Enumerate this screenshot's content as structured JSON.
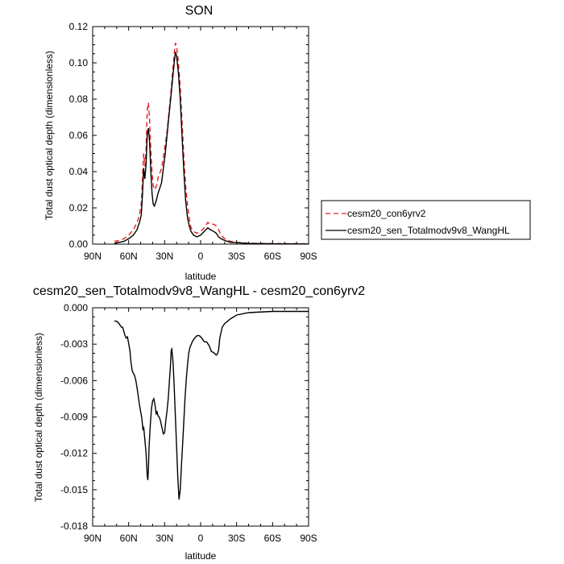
{
  "chart_data": [
    {
      "type": "line",
      "title": "SON",
      "xlabel": "latitude",
      "ylabel": "Total dust optical depth (dimensionless)",
      "xlim": [
        90,
        -90
      ],
      "ylim": [
        0,
        0.12
      ],
      "xticks": [
        90,
        60,
        30,
        0,
        -30,
        -60,
        -90
      ],
      "xtick_labels": [
        "90N",
        "60N",
        "30N",
        "0",
        "30S",
        "60S",
        "90S"
      ],
      "yticks": [
        0,
        0.02,
        0.04,
        0.06,
        0.08,
        0.1,
        0.12
      ],
      "ytick_labels": [
        "0.00",
        "0.02",
        "0.04",
        "0.06",
        "0.08",
        "0.10",
        "0.12"
      ],
      "legend_position": "right",
      "series": [
        {
          "name": "cesm20_con6yrv2",
          "color": "#e41a1c",
          "dash": "dashed",
          "points": [
            [
              72,
              0.0015
            ],
            [
              68,
              0.002
            ],
            [
              64,
              0.003
            ],
            [
              60,
              0.005
            ],
            [
              56,
              0.008
            ],
            [
              53,
              0.012
            ],
            [
              51,
              0.016
            ],
            [
              49.5,
              0.022
            ],
            [
              48.5,
              0.035
            ],
            [
              47.5,
              0.05
            ],
            [
              46.5,
              0.043
            ],
            [
              45.5,
              0.052
            ],
            [
              44.5,
              0.074
            ],
            [
              43.5,
              0.078
            ],
            [
              42.5,
              0.068
            ],
            [
              41.5,
              0.052
            ],
            [
              40.5,
              0.04
            ],
            [
              39.5,
              0.032
            ],
            [
              38,
              0.03
            ],
            [
              36.5,
              0.033
            ],
            [
              35,
              0.038
            ],
            [
              33.5,
              0.04
            ],
            [
              32.5,
              0.042
            ],
            [
              31,
              0.048
            ],
            [
              29.5,
              0.055
            ],
            [
              28,
              0.062
            ],
            [
              26.5,
              0.072
            ],
            [
              25,
              0.082
            ],
            [
              23.5,
              0.094
            ],
            [
              22,
              0.105
            ],
            [
              21,
              0.111
            ],
            [
              20,
              0.109
            ],
            [
              18.5,
              0.1
            ],
            [
              17,
              0.087
            ],
            [
              15.5,
              0.068
            ],
            [
              14,
              0.048
            ],
            [
              12.5,
              0.032
            ],
            [
              11,
              0.022
            ],
            [
              9.5,
              0.014
            ],
            [
              8,
              0.009
            ],
            [
              6,
              0.007
            ],
            [
              3,
              0.006
            ],
            [
              0,
              0.007
            ],
            [
              -3,
              0.009
            ],
            [
              -6,
              0.012
            ],
            [
              -8,
              0.011
            ],
            [
              -11,
              0.011
            ],
            [
              -13,
              0.01
            ],
            [
              -15,
              0.008
            ],
            [
              -17,
              0.005
            ],
            [
              -20,
              0.003
            ],
            [
              -25,
              0.0015
            ],
            [
              -30,
              0.001
            ],
            [
              -40,
              0.0005
            ],
            [
              -60,
              0.0003
            ],
            [
              -90,
              0.0002
            ]
          ]
        },
        {
          "name": "cesm20_sen_Totalmodv9v8_WangHL",
          "color": "#000000",
          "dash": "solid",
          "points": [
            [
              72,
              0.0005
            ],
            [
              68,
              0.001
            ],
            [
              64,
              0.0015
            ],
            [
              60,
              0.003
            ],
            [
              56,
              0.005
            ],
            [
              53,
              0.008
            ],
            [
              51,
              0.012
            ],
            [
              49.5,
              0.016
            ],
            [
              48.5,
              0.027
            ],
            [
              47.5,
              0.042
            ],
            [
              46.5,
              0.036
            ],
            [
              45.5,
              0.044
            ],
            [
              44.5,
              0.06
            ],
            [
              43.5,
              0.064
            ],
            [
              42.5,
              0.056
            ],
            [
              41.5,
              0.04
            ],
            [
              40.5,
              0.028
            ],
            [
              39.5,
              0.022
            ],
            [
              38.5,
              0.021
            ],
            [
              37,
              0.024
            ],
            [
              35.5,
              0.028
            ],
            [
              34,
              0.031
            ],
            [
              32.5,
              0.034
            ],
            [
              31,
              0.042
            ],
            [
              29.5,
              0.05
            ],
            [
              28,
              0.06
            ],
            [
              26.5,
              0.07
            ],
            [
              25,
              0.08
            ],
            [
              23.5,
              0.09
            ],
            [
              22,
              0.1
            ],
            [
              21,
              0.106
            ],
            [
              20,
              0.104
            ],
            [
              18.5,
              0.094
            ],
            [
              17,
              0.08
            ],
            [
              15.5,
              0.06
            ],
            [
              14,
              0.04
            ],
            [
              12.5,
              0.024
            ],
            [
              11,
              0.015
            ],
            [
              9.5,
              0.01
            ],
            [
              8,
              0.007
            ],
            [
              6,
              0.005
            ],
            [
              3,
              0.004
            ],
            [
              0,
              0.005
            ],
            [
              -3,
              0.007
            ],
            [
              -6,
              0.009
            ],
            [
              -8,
              0.008
            ],
            [
              -11,
              0.007
            ],
            [
              -13,
              0.006
            ],
            [
              -15,
              0.004
            ],
            [
              -17,
              0.003
            ],
            [
              -20,
              0.002
            ],
            [
              -25,
              0.001
            ],
            [
              -30,
              0.0008
            ],
            [
              -40,
              0.0004
            ],
            [
              -60,
              0.0002
            ],
            [
              -90,
              0.0001
            ]
          ]
        }
      ]
    },
    {
      "type": "line",
      "title": "cesm20_sen_Totalmodv9v8_WangHL - cesm20_con6yrv2",
      "xlabel": "latitude",
      "ylabel": "Total dust optical depth (dimensionless)",
      "xlim": [
        90,
        -90
      ],
      "ylim": [
        -0.018,
        0
      ],
      "xticks": [
        90,
        60,
        30,
        0,
        -30,
        -60,
        -90
      ],
      "xtick_labels": [
        "90N",
        "60N",
        "30N",
        "0",
        "30S",
        "60S",
        "90S"
      ],
      "yticks": [
        0,
        -0.003,
        -0.006,
        -0.009,
        -0.012,
        -0.015,
        -0.018
      ],
      "ytick_labels": [
        "0.000",
        "-0.003",
        "-0.006",
        "-0.009",
        "-0.012",
        "-0.015",
        "-0.018"
      ],
      "series": [
        {
          "color": "#000000",
          "dash": "solid",
          "points": [
            [
              72,
              -0.0011
            ],
            [
              70,
              -0.0011
            ],
            [
              68,
              -0.0013
            ],
            [
              66,
              -0.0016
            ],
            [
              65,
              -0.0016
            ],
            [
              63,
              -0.0023
            ],
            [
              62,
              -0.0025
            ],
            [
              61,
              -0.0024
            ],
            [
              59,
              -0.0035
            ],
            [
              58,
              -0.0045
            ],
            [
              57,
              -0.0052
            ],
            [
              55,
              -0.0056
            ],
            [
              54,
              -0.006
            ],
            [
              53,
              -0.0066
            ],
            [
              51,
              -0.008
            ],
            [
              49,
              -0.0091
            ],
            [
              48,
              -0.0101
            ],
            [
              47.5,
              -0.0098
            ],
            [
              46.5,
              -0.0109
            ],
            [
              45.5,
              -0.012
            ],
            [
              44.5,
              -0.0138
            ],
            [
              44,
              -0.0142
            ],
            [
              43.5,
              -0.0133
            ],
            [
              43,
              -0.0115
            ],
            [
              42,
              -0.0097
            ],
            [
              41,
              -0.0083
            ],
            [
              40,
              -0.0077
            ],
            [
              39,
              -0.0075
            ],
            [
              38,
              -0.008
            ],
            [
              37,
              -0.0088
            ],
            [
              36.5,
              -0.0085
            ],
            [
              35.5,
              -0.0089
            ],
            [
              34.5,
              -0.009
            ],
            [
              33.5,
              -0.0093
            ],
            [
              32,
              -0.01
            ],
            [
              31,
              -0.0104
            ],
            [
              30,
              -0.0103
            ],
            [
              29,
              -0.0093
            ],
            [
              28,
              -0.0085
            ],
            [
              27,
              -0.0075
            ],
            [
              26,
              -0.006
            ],
            [
              25,
              -0.0045
            ],
            [
              24.5,
              -0.0035
            ],
            [
              24,
              -0.0034
            ],
            [
              23,
              -0.0045
            ],
            [
              22,
              -0.0065
            ],
            [
              21,
              -0.009
            ],
            [
              20,
              -0.0115
            ],
            [
              19,
              -0.014
            ],
            [
              18,
              -0.0158
            ],
            [
              17,
              -0.015
            ],
            [
              16,
              -0.013
            ],
            [
              15,
              -0.0112
            ],
            [
              14,
              -0.0093
            ],
            [
              13,
              -0.0075
            ],
            [
              12,
              -0.006
            ],
            [
              11,
              -0.0048
            ],
            [
              10,
              -0.0038
            ],
            [
              9,
              -0.0033
            ],
            [
              7,
              -0.0028
            ],
            [
              5,
              -0.0025
            ],
            [
              3,
              -0.0023
            ],
            [
              1,
              -0.0023
            ],
            [
              -1,
              -0.0025
            ],
            [
              -3,
              -0.0028
            ],
            [
              -5,
              -0.0028
            ],
            [
              -7,
              -0.0031
            ],
            [
              -9,
              -0.0036
            ],
            [
              -11,
              -0.0037
            ],
            [
              -13,
              -0.0039
            ],
            [
              -14,
              -0.0038
            ],
            [
              -15,
              -0.0035
            ],
            [
              -16,
              -0.0025
            ],
            [
              -18,
              -0.0016
            ],
            [
              -20,
              -0.0013
            ],
            [
              -25,
              -0.0009
            ],
            [
              -30,
              -0.0006
            ],
            [
              -40,
              -0.0004
            ],
            [
              -60,
              -0.0003
            ],
            [
              -90,
              -0.0003
            ]
          ]
        }
      ]
    }
  ]
}
